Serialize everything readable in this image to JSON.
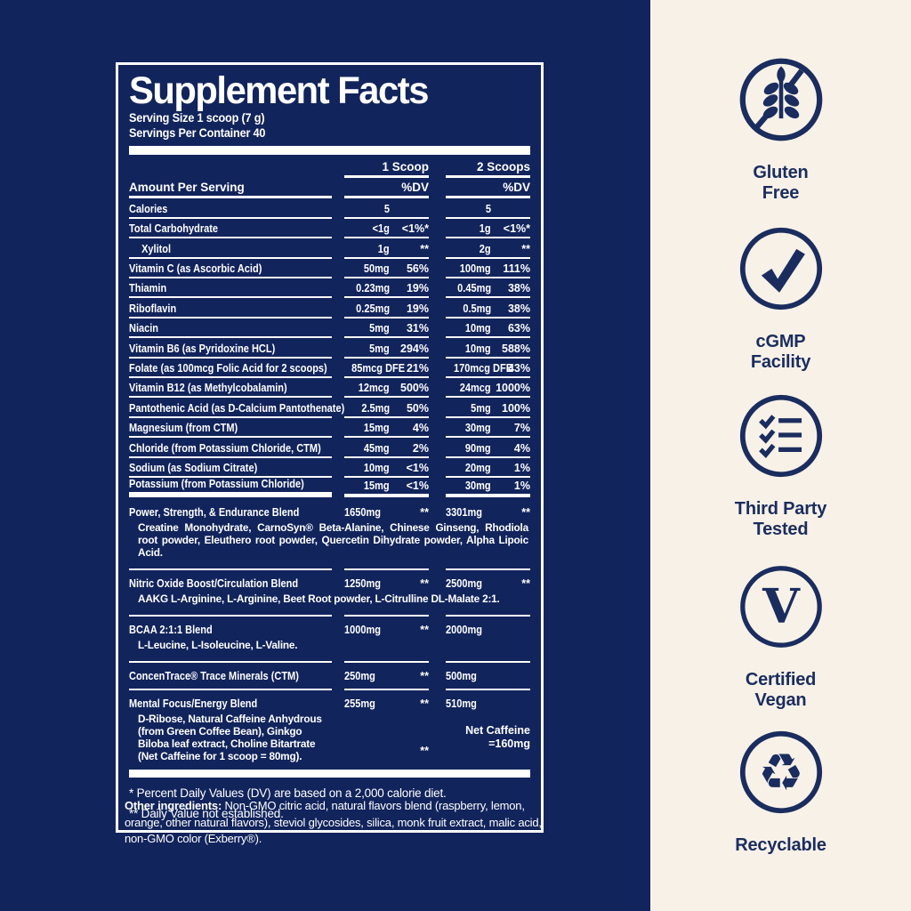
{
  "colors": {
    "navy": "#12245c",
    "cream": "#f7f1e8",
    "white": "#ffffff",
    "badge_navy": "#1b2d5e"
  },
  "label": {
    "title": "Supplement Facts",
    "serving_size": "Serving Size 1 scoop (7 g)",
    "servings_per_container": "Servings Per Container 40",
    "columns": {
      "col1": "1 Scoop",
      "col2": "2 Scoops",
      "amount_header": "Amount Per Serving",
      "dv": "%DV"
    },
    "footnotes": [
      "* Percent Daily Values (DV) are based on a 2,000 calorie diet.",
      "** Daily Value not established."
    ],
    "other_ingredients_label": "Other ingredients:",
    "other_ingredients_text": " Non-GMO citric acid, natural flavors blend (raspberry, lemon, orange, other natural flavors), steviol glycosides, silica, monk fruit extract, malic acid, non-GMO color (Exberry®)."
  },
  "table": {
    "rows": [
      {
        "label": "Calories",
        "indent": false,
        "a1": "5",
        "dv1": "",
        "a2": "5",
        "dv2": "",
        "thick": false
      },
      {
        "label": "Total Carbohydrate",
        "indent": false,
        "a1": "<1g",
        "dv1": "<1%*",
        "a2": "1g",
        "dv2": "<1%*",
        "thick": false
      },
      {
        "label": "Xylitol",
        "indent": true,
        "a1": "1g",
        "dv1": "**",
        "a2": "2g",
        "dv2": "**",
        "thick": false
      },
      {
        "label": "Vitamin C (as Ascorbic Acid)",
        "indent": false,
        "a1": "50mg",
        "dv1": "56%",
        "a2": "100mg",
        "dv2": "111%",
        "thick": false
      },
      {
        "label": "Thiamin",
        "indent": false,
        "a1": "0.23mg",
        "dv1": "19%",
        "a2": "0.45mg",
        "dv2": "38%",
        "thick": false
      },
      {
        "label": "Riboflavin",
        "indent": false,
        "a1": "0.25mg",
        "dv1": "19%",
        "a2": "0.5mg",
        "dv2": "38%",
        "thick": false
      },
      {
        "label": "Niacin",
        "indent": false,
        "a1": "5mg",
        "dv1": "31%",
        "a2": "10mg",
        "dv2": "63%",
        "thick": false
      },
      {
        "label": "Vitamin B6 (as Pyridoxine HCL)",
        "indent": false,
        "a1": "5mg",
        "dv1": "294%",
        "a2": "10mg",
        "dv2": "588%",
        "thick": false
      },
      {
        "label": "Folate (as 100mcg Folic Acid for 2 scoops)",
        "indent": false,
        "a1": "85mcg DFE",
        "dv1": "21%",
        "a2": "170mcg DFE",
        "dv2": "43%",
        "thick": false
      },
      {
        "label": "Vitamin B12 (as Methylcobalamin)",
        "indent": false,
        "a1": "12mcg",
        "dv1": "500%",
        "a2": "24mcg",
        "dv2": "1000%",
        "thick": false
      },
      {
        "label": "Pantothenic Acid (as D-Calcium Pantothenate)",
        "indent": false,
        "a1": "2.5mg",
        "dv1": "50%",
        "a2": "5mg",
        "dv2": "100%",
        "thick": false
      },
      {
        "label": "Magnesium (from CTM)",
        "indent": false,
        "a1": "15mg",
        "dv1": "4%",
        "a2": "30mg",
        "dv2": "7%",
        "thick": false
      },
      {
        "label": "Chloride (from Potassium Chloride, CTM)",
        "indent": false,
        "a1": "45mg",
        "dv1": "2%",
        "a2": "90mg",
        "dv2": "4%",
        "thick": false
      },
      {
        "label": "Sodium (as Sodium Citrate)",
        "indent": false,
        "a1": "10mg",
        "dv1": "<1%",
        "a2": "20mg",
        "dv2": "1%",
        "thick": false
      },
      {
        "label": "Potassium (from Potassium Chloride)",
        "indent": false,
        "a1": "15mg",
        "dv1": "<1%",
        "a2": "30mg",
        "dv2": "1%",
        "thick": true
      }
    ],
    "blends": [
      {
        "label": "Power, Strength, & Endurance Blend",
        "a1": "1650mg",
        "dv1": "**",
        "a2": "3301mg",
        "dv2": "**",
        "sub": "Creatine Monohydrate, CarnoSyn® Beta-Alanine, Chinese Ginseng, Rhodiola root powder, Eleuthero root powder, Quercetin Dihydrate powder, Alpha Lipoic Acid."
      },
      {
        "label": "Nitric Oxide Boost/Circulation Blend",
        "a1": "1250mg",
        "dv1": "**",
        "a2": "2500mg",
        "dv2": "**",
        "sub": "AAKG L-Arginine, L-Arginine, Beet Root powder, L-Citrulline DL-Malate 2:1."
      },
      {
        "label": "BCAA 2:1:1 Blend",
        "a1": "1000mg",
        "dv1": "**",
        "a2": "2000mg",
        "dv2": "",
        "sub": "L-Leucine, L-Isoleucine, L-Valine."
      },
      {
        "label": "ConcenTrace® Trace Minerals (CTM)",
        "a1": "250mg",
        "dv1": "**",
        "a2": "500mg",
        "dv2": "",
        "sub": ""
      },
      {
        "label": "Mental Focus/Energy Blend",
        "a1": "255mg",
        "dv1": "**",
        "a2": "510mg",
        "dv2": "",
        "sub": "D-Ribose, Natural Caffeine Anhydrous (from Green Coffee Bean), Ginkgo Biloba leaf extract, Choline Bitartrate (Net Caffeine for 1 scoop = 80mg).",
        "note_dv": "**",
        "note_line1": "Net Caffeine",
        "note_line2": "=160mg"
      }
    ]
  },
  "badges": [
    {
      "name": "gluten-free",
      "line1": "Gluten",
      "line2": "Free"
    },
    {
      "name": "cgmp-facility",
      "line1": "cGMP",
      "line2": "Facility"
    },
    {
      "name": "third-party-tested",
      "line1": "Third Party",
      "line2": "Tested"
    },
    {
      "name": "certified-vegan",
      "line1": "Certified",
      "line2": "Vegan"
    },
    {
      "name": "recyclable",
      "line1": "Recyclable",
      "line2": ""
    }
  ]
}
